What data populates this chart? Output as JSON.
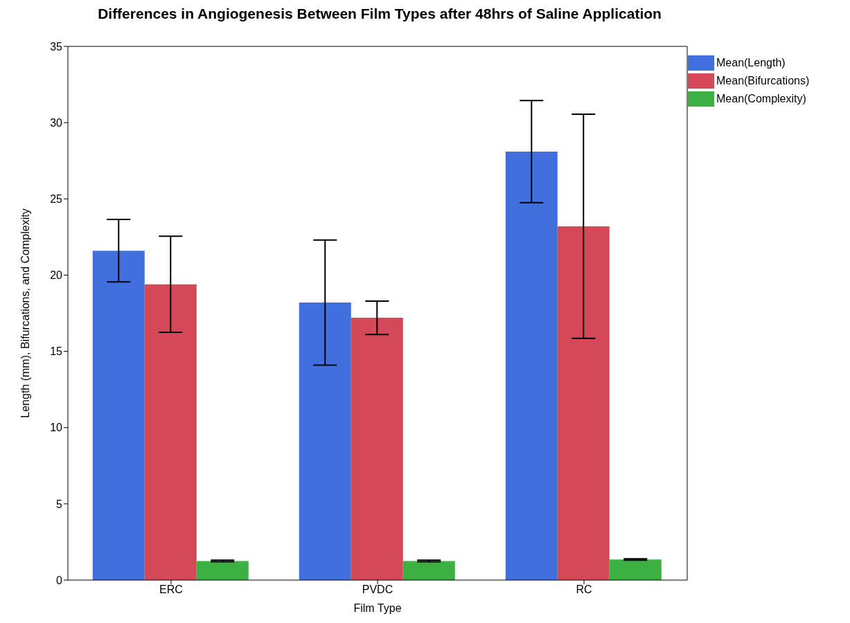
{
  "chart_data": {
    "type": "bar",
    "title": "Differences in Angiogenesis Between Film Types after 48hrs of Saline Application",
    "xlabel": "Film Type",
    "ylabel": "Length (mm), Bifurcations, and Complexity",
    "categories": [
      "ERC",
      "PVDC",
      "RC"
    ],
    "series": [
      {
        "name": "Mean(Length)",
        "color": "#4170de",
        "values": [
          21.6,
          18.2,
          28.1
        ],
        "errors": [
          2.05,
          4.1,
          3.35
        ]
      },
      {
        "name": "Mean(Bifurcations)",
        "color": "#d44858",
        "values": [
          19.4,
          17.2,
          23.2
        ],
        "errors": [
          3.15,
          1.1,
          7.35
        ]
      },
      {
        "name": "Mean(Complexity)",
        "color": "#3cb043",
        "values": [
          1.25,
          1.25,
          1.35
        ],
        "errors": [
          0.05,
          0.05,
          0.05
        ]
      }
    ],
    "ylim": [
      0,
      35
    ],
    "yticks": [
      0,
      5,
      10,
      15,
      20,
      25,
      30,
      35
    ],
    "grid": false,
    "legend": "top right"
  }
}
